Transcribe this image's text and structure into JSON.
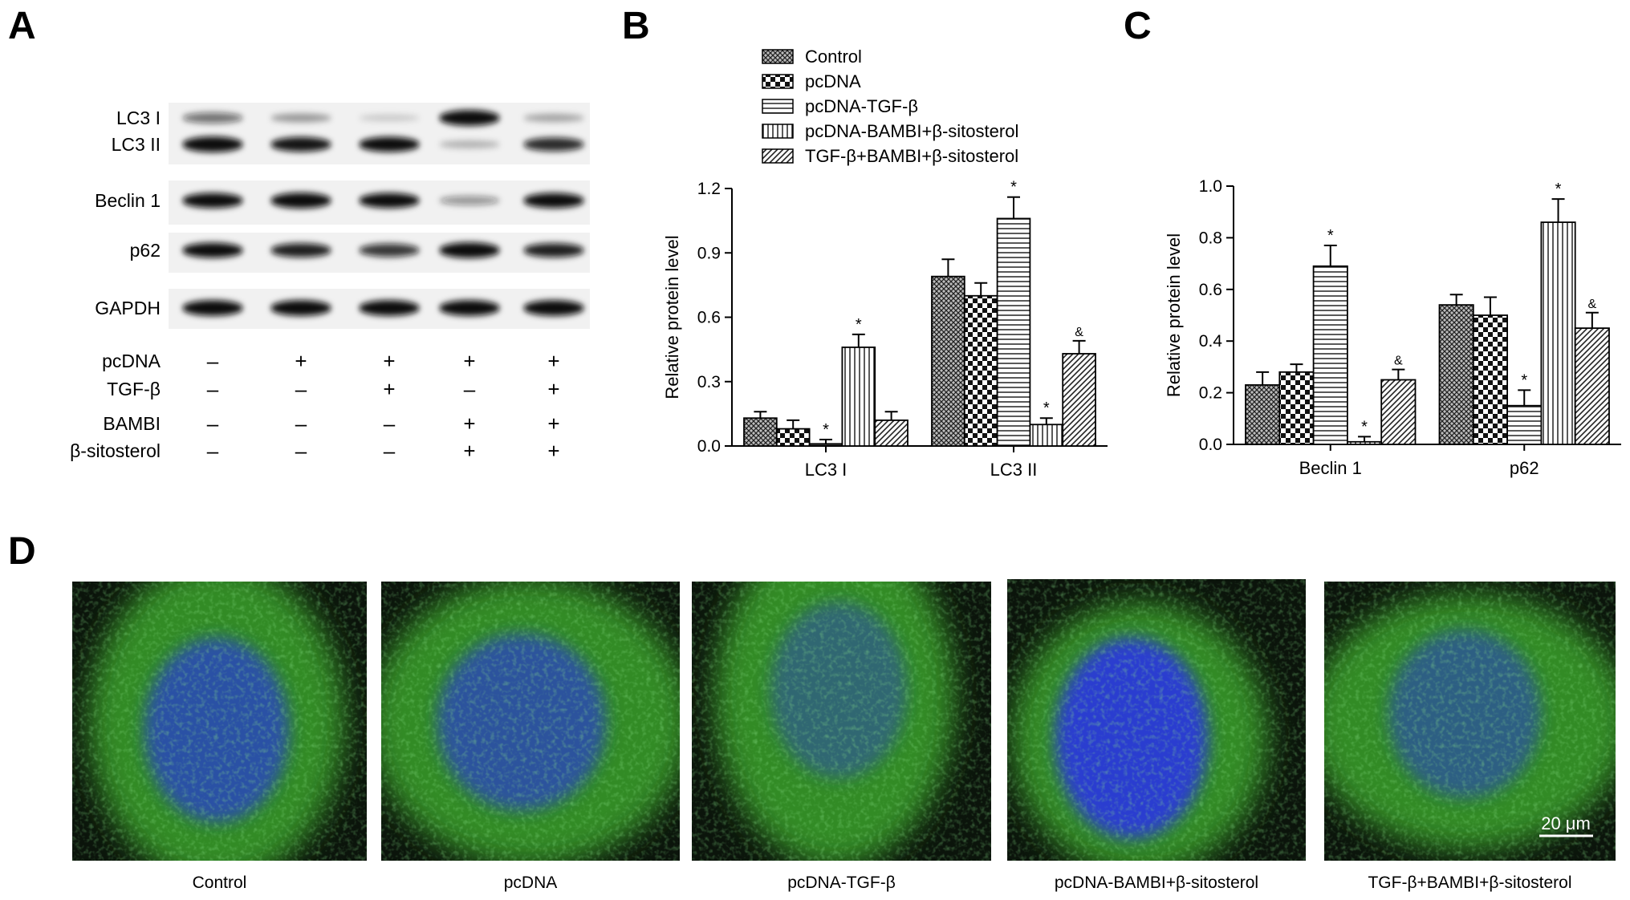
{
  "panels": {
    "a": "A",
    "b": "B",
    "c": "C",
    "d": "D"
  },
  "western_blot": {
    "bands": [
      {
        "label": "LC3 I",
        "intensity": [
          0.45,
          0.25,
          0.05,
          0.95,
          0.2
        ]
      },
      {
        "label": "LC3 II",
        "intensity": [
          0.95,
          0.85,
          0.9,
          0.15,
          0.75
        ]
      },
      {
        "label": "Beclin 1",
        "intensity": [
          0.9,
          0.95,
          0.9,
          0.3,
          0.9
        ]
      },
      {
        "label": "p62",
        "intensity": [
          0.9,
          0.8,
          0.7,
          0.95,
          0.8
        ]
      },
      {
        "label": "GAPDH",
        "intensity": [
          0.95,
          0.95,
          0.95,
          0.95,
          0.95
        ]
      }
    ],
    "conditions": [
      {
        "label": "pcDNA",
        "signs": [
          "–",
          "+",
          "+",
          "+",
          "+"
        ]
      },
      {
        "label": "TGF-β",
        "signs": [
          "–",
          "–",
          "+",
          "–",
          "+"
        ]
      },
      {
        "label": "BAMBI",
        "signs": [
          "–",
          "–",
          "–",
          "+",
          "+"
        ]
      },
      {
        "label": "β-sitosterol",
        "signs": [
          "–",
          "–",
          "–",
          "+",
          "+"
        ]
      }
    ]
  },
  "legend": [
    "Control",
    "pcDNA",
    "pcDNA-TGF-β",
    "pcDNA-BAMBI+β-sitosterol",
    "TGF-β+BAMBI+β-sitosterol"
  ],
  "chart_data": [
    {
      "type": "bar",
      "categories": [
        "LC3 I",
        "LC3 II"
      ],
      "ylabel": "Relative protein level",
      "ylim": [
        0,
        1.2
      ],
      "yticks": [
        "0.0",
        "0.3",
        "0.6",
        "0.9",
        "1.2"
      ],
      "legend": "top",
      "series": [
        {
          "name": "Control",
          "values": [
            0.13,
            0.79
          ],
          "errors": [
            0.03,
            0.08
          ],
          "marks": [
            "",
            ""
          ]
        },
        {
          "name": "pcDNA",
          "values": [
            0.08,
            0.7
          ],
          "errors": [
            0.04,
            0.06
          ],
          "marks": [
            "",
            ""
          ]
        },
        {
          "name": "pcDNA-TGF-β",
          "values": [
            0.01,
            1.06
          ],
          "errors": [
            0.02,
            0.1
          ],
          "marks": [
            "*",
            "*"
          ]
        },
        {
          "name": "pcDNA-BAMBI+β-sitosterol",
          "values": [
            0.46,
            0.1
          ],
          "errors": [
            0.06,
            0.03
          ],
          "marks": [
            "*",
            "*"
          ]
        },
        {
          "name": "TGF-β+BAMBI+β-sitosterol",
          "values": [
            0.12,
            0.43
          ],
          "errors": [
            0.04,
            0.06
          ],
          "marks": [
            "",
            "&"
          ]
        }
      ]
    },
    {
      "type": "bar",
      "categories": [
        "Beclin 1",
        "p62"
      ],
      "ylabel": "Relative protein level",
      "ylim": [
        0,
        1.0
      ],
      "yticks": [
        "0.0",
        "0.2",
        "0.4",
        "0.6",
        "0.8",
        "1.0"
      ],
      "legend": "top",
      "series": [
        {
          "name": "Control",
          "values": [
            0.23,
            0.54
          ],
          "errors": [
            0.05,
            0.04
          ],
          "marks": [
            "",
            ""
          ]
        },
        {
          "name": "pcDNA",
          "values": [
            0.28,
            0.5
          ],
          "errors": [
            0.03,
            0.07
          ],
          "marks": [
            "",
            ""
          ]
        },
        {
          "name": "pcDNA-TGF-β",
          "values": [
            0.69,
            0.15
          ],
          "errors": [
            0.08,
            0.06
          ],
          "marks": [
            "*",
            "*"
          ]
        },
        {
          "name": "pcDNA-BAMBI+β-sitosterol",
          "values": [
            0.01,
            0.86
          ],
          "errors": [
            0.02,
            0.09
          ],
          "marks": [
            "*",
            "*"
          ]
        },
        {
          "name": "TGF-β+BAMBI+β-sitosterol",
          "values": [
            0.25,
            0.45
          ],
          "errors": [
            0.04,
            0.06
          ],
          "marks": [
            "&",
            "&"
          ]
        }
      ]
    }
  ],
  "micrographs": {
    "captions": [
      "Control",
      "pcDNA",
      "pcDNA-TGF-β",
      "pcDNA-BAMBI+β-sitosterol",
      "TGF-β+BAMBI+β-sitosterol"
    ],
    "scale_bar": "20 μm"
  },
  "colors": {
    "nucleus_blue": "#2a3cd0",
    "cytoplasm_green": "#3aa02a",
    "background_dark": "#0b140b"
  }
}
